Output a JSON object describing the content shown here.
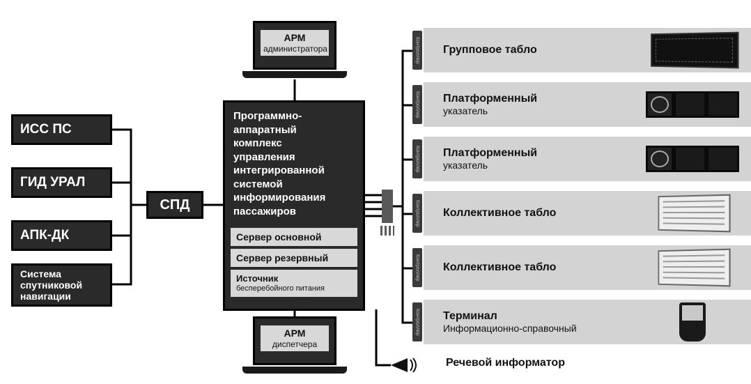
{
  "colors": {
    "dark": "#2a2a2a",
    "light": "#d5d5d5",
    "row": "#d3d3d3",
    "line": "#000000",
    "bg": "#ffffff"
  },
  "fonts": {
    "family": "Arial",
    "heading_size": 19,
    "body_size": 15
  },
  "left_systems": [
    {
      "label": "ИСС ПС"
    },
    {
      "label": "ГИД УРАЛ"
    },
    {
      "label": "АПК-ДК"
    },
    {
      "label": "Система\nспутниковой\nнавигации"
    }
  ],
  "spd": {
    "label": "СПД"
  },
  "center": {
    "title": "Программно-\nаппаратный\nкомплекс\nуправления\nинтегрированной\nсистемой\nинформирования\nпассажиров",
    "server_main": "Сервер основной",
    "server_backup": "Сервер резервный",
    "ups_title": "Источник",
    "ups_sub": "бесперебойного питания"
  },
  "arm_admin": {
    "title": "АРМ",
    "sub": "администратора"
  },
  "arm_disp": {
    "title": "АРМ",
    "sub": "диспетчера"
  },
  "rows": [
    {
      "controller": "Контроллер",
      "title": "Групповое табло",
      "device": "board"
    },
    {
      "controller": "Контроллер",
      "title": "Платформенный",
      "sub": "указатель",
      "device": "platform"
    },
    {
      "controller": "Контроллер",
      "title": "Платформенный",
      "sub": "указатель",
      "device": "platform"
    },
    {
      "controller": "Контроллер",
      "title": "Коллективное табло",
      "device": "collective"
    },
    {
      "controller": "Контроллер",
      "title": "Коллективное табло",
      "device": "collective"
    },
    {
      "controller": "Контроллер",
      "title": "Терминал",
      "sub": "Информационно-справочный",
      "device": "kiosk"
    }
  ],
  "speech": {
    "label": "Речевой информатор"
  }
}
